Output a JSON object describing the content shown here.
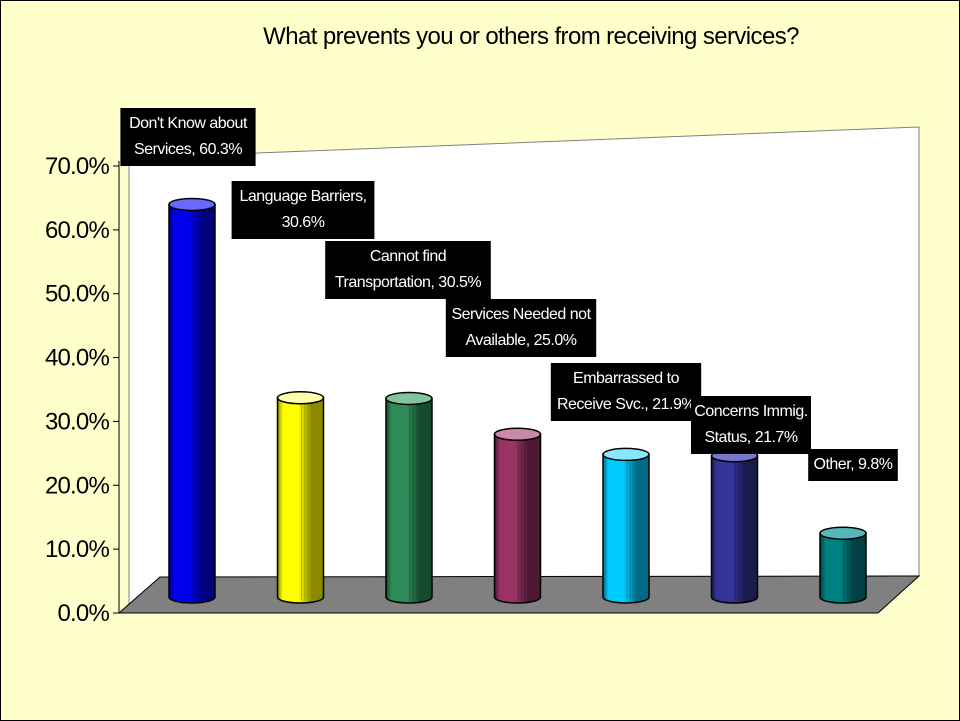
{
  "chart_data": {
    "type": "bar",
    "title": "What prevents you or others from receiving services?",
    "categories": [
      "Don't Know about Services",
      "Language Barriers",
      "Cannot find Transportation",
      "Services Needed not Available",
      "Embarrassed to Receive Svc.",
      "Concerns Immig. Status",
      "Other"
    ],
    "values": [
      60.3,
      30.6,
      30.5,
      25.0,
      21.9,
      21.7,
      9.8
    ],
    "data_labels": [
      [
        "Don't Know  about",
        "Services, 60.3%"
      ],
      [
        "Language Barriers,",
        "30.6%"
      ],
      [
        "Cannot find",
        "Transportation, 30.5%"
      ],
      [
        "Services Needed not",
        "Available, 25.0%"
      ],
      [
        "Embarrassed to",
        "Receive Svc., 21.9%"
      ],
      [
        "Concerns Immig.",
        "Status, 21.7%"
      ],
      [
        "Other, 9.8%"
      ]
    ],
    "y_ticks": [
      "0.0%",
      "10.0%",
      "20.0%",
      "30.0%",
      "40.0%",
      "50.0%",
      "60.0%",
      "70.0%"
    ],
    "ylim": [
      0,
      70
    ],
    "grid": false,
    "legend": "none",
    "colors": [
      "#0000ee",
      "#ffff00",
      "#2e8b57",
      "#993366",
      "#00ccff",
      "#333399",
      "#008080"
    ],
    "colors_dark": [
      "#00007a",
      "#8a8a00",
      "#164a2d",
      "#4d1933",
      "#006a85",
      "#1a1a4d",
      "#004040"
    ],
    "colors_light": [
      "#6a6aff",
      "#ffffaa",
      "#7fc49b",
      "#cc88aa",
      "#88e6ff",
      "#7777cc",
      "#55b8b8"
    ]
  }
}
